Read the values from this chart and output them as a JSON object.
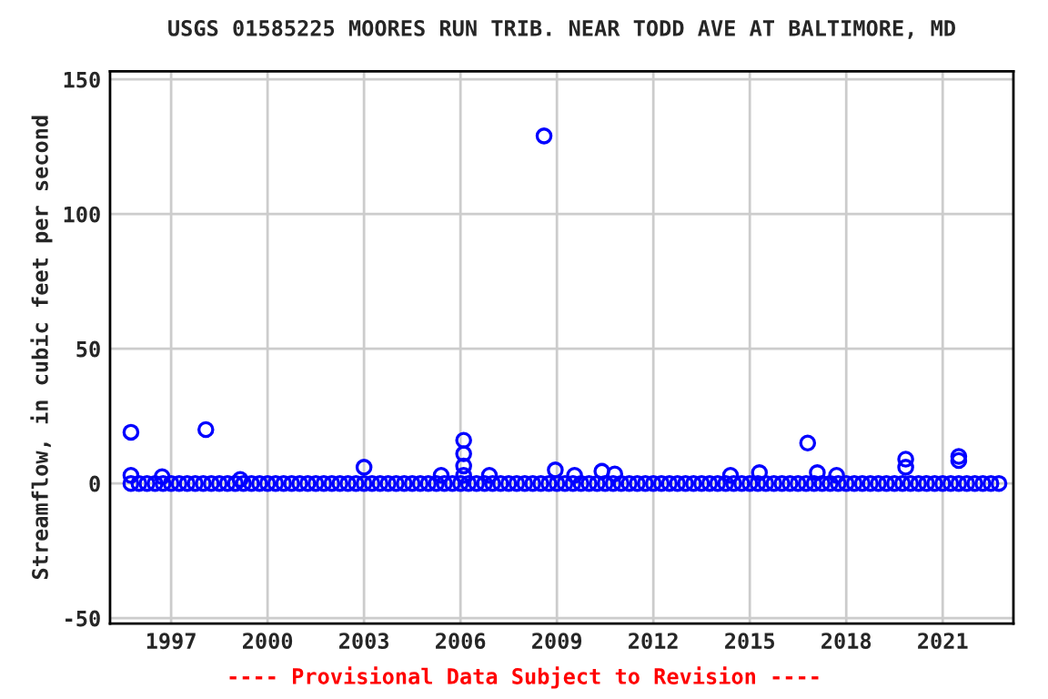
{
  "chart_data": {
    "type": "scatter",
    "title": "USGS 01585225 MOORES RUN TRIB. NEAR TODD AVE AT BALTIMORE, MD",
    "ylabel": "Streamflow, in cubic feet per second",
    "annotations": [
      "---- Provisional Data Subject to Revision ----"
    ],
    "xlim": [
      1995.1,
      2023.2
    ],
    "xticks": [
      1997,
      2000,
      2003,
      2006,
      2009,
      2012,
      2015,
      2018,
      2021
    ],
    "ylim": [
      -52,
      153
    ],
    "yticks": [
      -50,
      0,
      50,
      100,
      150
    ],
    "grid": true,
    "marker": "circle",
    "series": [
      {
        "color": "#0000ff",
        "x": [
          1995.75,
          1996,
          1996.25,
          1996.5,
          1996.75,
          1997,
          1997.25,
          1997.5,
          1997.75,
          1998,
          1998.25,
          1998.5,
          1998.75,
          1999,
          1999.25,
          1999.5,
          1999.75,
          2000,
          2000.25,
          2000.5,
          2000.75,
          2001,
          2001.25,
          2001.5,
          2001.75,
          2002,
          2002.25,
          2002.5,
          2002.75,
          2003,
          2003.25,
          2003.5,
          2003.75,
          2004,
          2004.25,
          2004.5,
          2004.75,
          2005,
          2005.25,
          2005.5,
          2005.75,
          2006,
          2006.25,
          2006.5,
          2006.75,
          2007,
          2007.25,
          2007.5,
          2007.75,
          2008,
          2008.25,
          2008.5,
          2008.75,
          2009,
          2009.25,
          2009.5,
          2009.75,
          2010,
          2010.25,
          2010.5,
          2010.75,
          2011,
          2011.25,
          2011.5,
          2011.75,
          2012,
          2012.25,
          2012.5,
          2012.75,
          2013,
          2013.25,
          2013.5,
          2013.75,
          2014,
          2014.25,
          2014.5,
          2014.75,
          2015,
          2015.25,
          2015.5,
          2015.75,
          2016,
          2016.25,
          2016.5,
          2016.75,
          2017,
          2017.25,
          2017.5,
          2017.75,
          2018,
          2018.25,
          2018.5,
          2018.75,
          2019,
          2019.25,
          2019.5,
          2019.75,
          2020,
          2020.25,
          2020.5,
          2020.75,
          2021,
          2021.25,
          2021.5,
          2021.75,
          2022,
          2022.25,
          2022.5,
          2022.75,
          1995.75,
          1995.75,
          1996.72,
          1998.08,
          1999.15,
          2003.0,
          2005.4,
          2006.1,
          2006.1,
          2006.1,
          2006.1,
          2006.9,
          2008.6,
          2008.95,
          2009.55,
          2010.4,
          2010.8,
          2014.4,
          2015.3,
          2016.8,
          2017.1,
          2017.7,
          2019.85,
          2019.85,
          2021.5,
          2021.5
        ],
        "values": [
          0,
          0,
          0,
          0,
          0,
          0,
          0,
          0,
          0,
          0,
          0,
          0,
          0,
          0,
          0,
          0,
          0,
          0,
          0,
          0,
          0,
          0,
          0,
          0,
          0,
          0,
          0,
          0,
          0,
          0,
          0,
          0,
          0,
          0,
          0,
          0,
          0,
          0,
          0,
          0,
          0,
          0,
          0,
          0,
          0,
          0,
          0,
          0,
          0,
          0,
          0,
          0,
          0,
          0,
          0,
          0,
          0,
          0,
          0,
          0,
          0,
          0,
          0,
          0,
          0,
          0,
          0,
          0,
          0,
          0,
          0,
          0,
          0,
          0,
          0,
          0,
          0,
          0,
          0,
          0,
          0,
          0,
          0,
          0,
          0,
          0,
          0,
          0,
          0,
          0,
          0,
          0,
          0,
          0,
          0,
          0,
          0,
          0,
          0,
          0,
          0,
          0,
          0,
          0,
          0,
          0,
          0,
          0,
          0,
          19,
          3,
          2.5,
          20,
          1.5,
          6,
          3,
          16,
          11,
          6.5,
          3,
          3,
          129,
          5,
          3,
          4.5,
          3.5,
          3,
          4,
          15,
          4,
          3,
          9,
          6,
          10,
          8.5
        ]
      }
    ]
  }
}
